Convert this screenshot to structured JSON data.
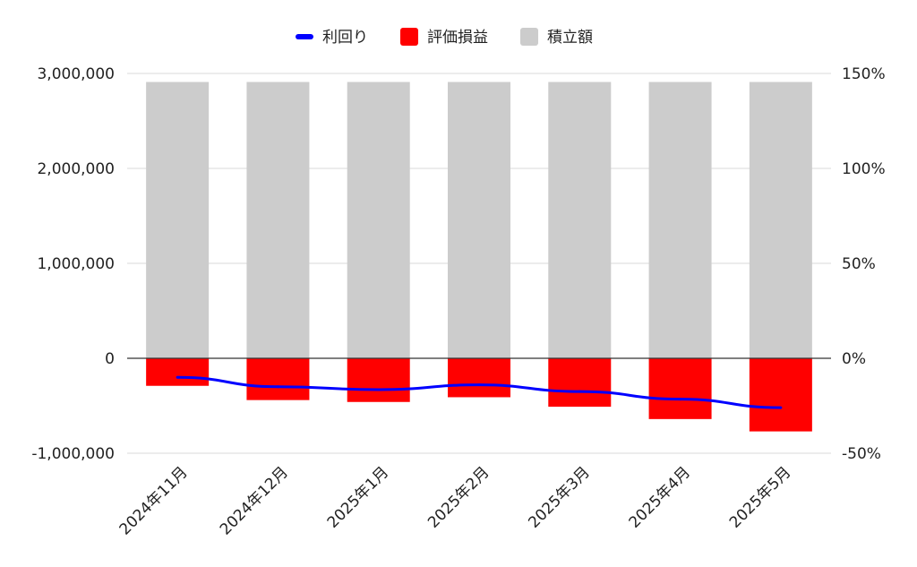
{
  "chart_data": {
    "type": "bar",
    "stacked": true,
    "categories": [
      "2024年11月",
      "2024年12月",
      "2025年1月",
      "2025年2月",
      "2025年3月",
      "2025年4月",
      "2025年5月"
    ],
    "series": [
      {
        "name": "積立額",
        "kind": "bar",
        "axis": "left",
        "color": "#cccccc",
        "values": [
          2910000,
          2910000,
          2910000,
          2910000,
          2910000,
          2910000,
          2910000
        ]
      },
      {
        "name": "評価損益",
        "kind": "bar",
        "axis": "left",
        "color": "#ff0000",
        "values": [
          -290000,
          -440000,
          -460000,
          -410000,
          -510000,
          -640000,
          -770000
        ]
      },
      {
        "name": "利回り",
        "kind": "line",
        "axis": "right",
        "color": "#0000ff",
        "values": [
          -10,
          -15,
          -16.5,
          -14,
          -17.5,
          -21.5,
          -26
        ]
      }
    ],
    "legend": [
      "利回り",
      "評価損益",
      "積立額"
    ],
    "legend_position": "top",
    "y_left": {
      "range": [
        -1000000,
        3000000
      ],
      "ticks": [
        -1000000,
        0,
        1000000,
        2000000,
        3000000
      ],
      "tick_labels": [
        "-1,000,000",
        "0",
        "1,000,000",
        "2,000,000",
        "3,000,000"
      ]
    },
    "y_right": {
      "range": [
        -50,
        150
      ],
      "tick_labels": [
        "-50%",
        "0%",
        "50%",
        "100%",
        "150%"
      ]
    },
    "grid": true
  }
}
